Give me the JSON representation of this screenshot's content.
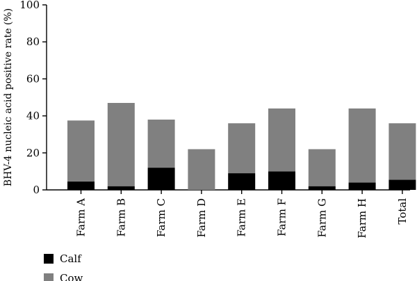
{
  "chart_data": {
    "type": "bar",
    "stacked": true,
    "categories": [
      "Farm A",
      "Farm B",
      "Farm C",
      "Farm D",
      "Farm E",
      "Farm F",
      "Farm G",
      "Farm H",
      "Total"
    ],
    "series": [
      {
        "name": "Calf",
        "values": [
          4.5,
          2.0,
          12.0,
          0.0,
          9.0,
          10.0,
          2.0,
          4.0,
          5.5
        ],
        "color": "#000000"
      },
      {
        "name": "Cow",
        "values": [
          33.0,
          45.0,
          26.0,
          22.0,
          27.0,
          34.0,
          20.0,
          40.0,
          30.5
        ],
        "color": "#808080"
      }
    ],
    "ylabel": "BHV-4 nucleic acid positive rate (%)",
    "xlabel": "",
    "ylim": [
      0,
      100
    ],
    "yticks": [
      "0",
      "20",
      "40",
      "60",
      "80",
      "100"
    ],
    "grid": false,
    "legend_position": "bottom-left"
  }
}
